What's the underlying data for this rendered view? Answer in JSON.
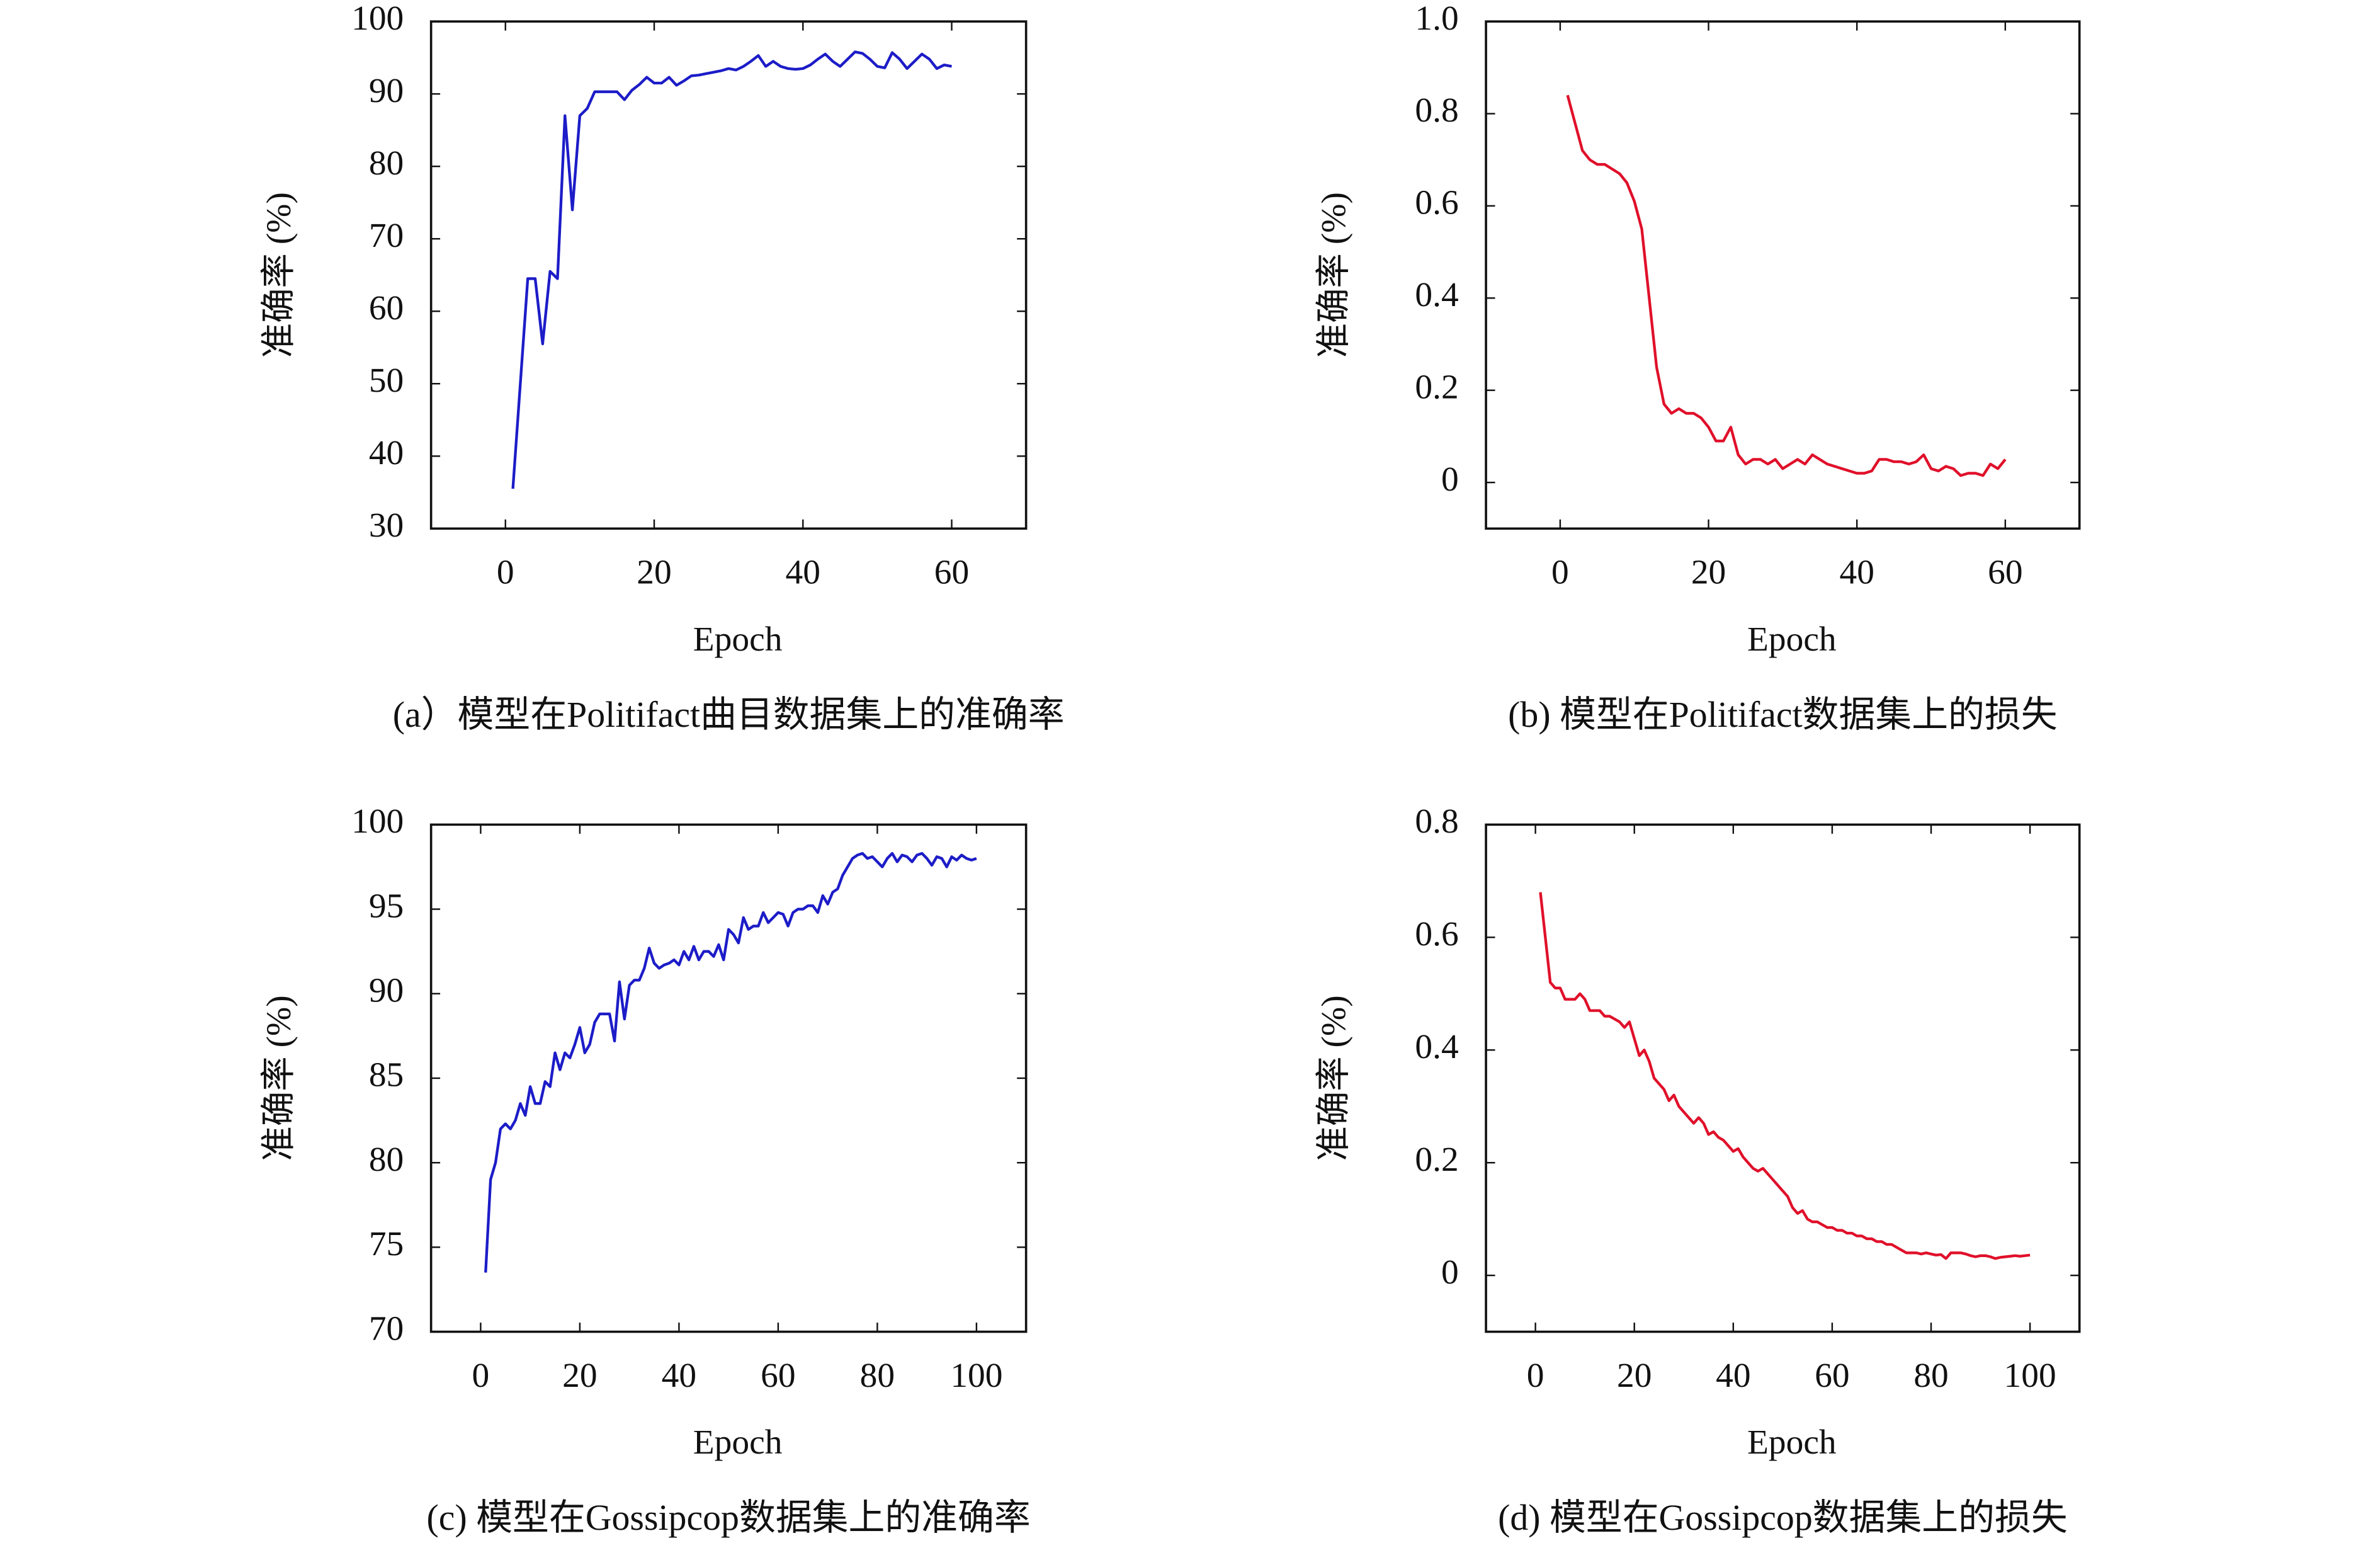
{
  "chart_data": [
    {
      "type": "line",
      "caption": "(a）模型在Politifact曲目数据集上的准确率",
      "xlabel": "Epoch",
      "ylabel": "准确率 (%)",
      "color": "#1c1cc8",
      "xlim": [
        -10,
        70
      ],
      "ylim": [
        30,
        100
      ],
      "xticks": [
        0,
        20,
        40,
        60
      ],
      "yticks": [
        30,
        40,
        50,
        60,
        70,
        80,
        90,
        100
      ],
      "x": [
        1,
        2,
        3,
        4,
        5,
        6,
        7,
        8,
        9,
        10,
        11,
        12,
        13,
        14,
        15,
        16,
        17,
        18,
        19,
        20,
        21,
        22,
        23,
        24,
        25,
        26,
        27,
        28,
        29,
        30,
        31,
        32,
        33,
        34,
        35,
        36,
        37,
        38,
        39,
        40,
        41,
        42,
        43,
        44,
        45,
        46,
        47,
        48,
        49,
        50,
        51,
        52,
        53,
        54,
        55,
        56,
        57,
        58,
        59,
        60
      ],
      "values": [
        35.5,
        50,
        64.5,
        64.5,
        55.5,
        65.5,
        64.5,
        87,
        74,
        87,
        88,
        90.3,
        90.3,
        90.3,
        90.3,
        89.2,
        90.5,
        91.3,
        92.3,
        91.5,
        91.5,
        92.3,
        91.2,
        91.8,
        92.5,
        92.6,
        92.8,
        93,
        93.2,
        93.5,
        93.3,
        93.8,
        94.5,
        95.3,
        93.8,
        94.5,
        93.8,
        93.5,
        93.4,
        93.5,
        94,
        94.8,
        95.5,
        94.5,
        93.8,
        94.8,
        95.8,
        95.6,
        94.8,
        93.8,
        93.6,
        95.7,
        94.8,
        93.5,
        94.5,
        95.5,
        94.8,
        93.5,
        94,
        93.8
      ]
    },
    {
      "type": "line",
      "caption": "(b) 模型在Politifact数据集上的损失",
      "xlabel": "Epoch",
      "ylabel": "准确率 (%)",
      "color": "#e0102a",
      "xlim": [
        -10,
        70
      ],
      "ylim": [
        -0.1,
        1.0
      ],
      "xticks": [
        0,
        20,
        40,
        60
      ],
      "yticks": [
        0,
        0.2,
        0.4,
        0.6,
        0.8,
        {
          "value": 1,
          "label": "1.0"
        }
      ],
      "x": [
        1,
        2,
        3,
        4,
        5,
        6,
        7,
        8,
        9,
        10,
        11,
        12,
        13,
        14,
        15,
        16,
        17,
        18,
        19,
        20,
        21,
        22,
        23,
        24,
        25,
        26,
        27,
        28,
        29,
        30,
        31,
        32,
        33,
        34,
        35,
        36,
        37,
        38,
        39,
        40,
        41,
        42,
        43,
        44,
        45,
        46,
        47,
        48,
        49,
        50,
        51,
        52,
        53,
        54,
        55,
        56,
        57,
        58,
        59,
        60
      ],
      "values": [
        0.84,
        0.78,
        0.72,
        0.7,
        0.69,
        0.69,
        0.68,
        0.67,
        0.65,
        0.61,
        0.55,
        0.4,
        0.25,
        0.17,
        0.15,
        0.16,
        0.15,
        0.15,
        0.14,
        0.12,
        0.09,
        0.09,
        0.12,
        0.06,
        0.04,
        0.05,
        0.05,
        0.04,
        0.05,
        0.03,
        0.04,
        0.05,
        0.04,
        0.06,
        0.05,
        0.04,
        0.035,
        0.03,
        0.025,
        0.02,
        0.02,
        0.025,
        0.05,
        0.05,
        0.045,
        0.045,
        0.04,
        0.045,
        0.06,
        0.03,
        0.025,
        0.035,
        0.03,
        0.015,
        0.02,
        0.02,
        0.015,
        0.04,
        0.03,
        0.05
      ]
    },
    {
      "type": "line",
      "caption": "(c) 模型在Gossipcop数据集上的准确率",
      "xlabel": "Epoch",
      "ylabel": "准确率 (%)",
      "color": "#1c1cc8",
      "xlim": [
        -10,
        110
      ],
      "ylim": [
        70,
        100
      ],
      "xticks": [
        0,
        20,
        40,
        60,
        80,
        100
      ],
      "yticks": [
        70,
        75,
        80,
        85,
        90,
        95,
        100
      ],
      "x": [
        1,
        2,
        3,
        4,
        5,
        6,
        7,
        8,
        9,
        10,
        11,
        12,
        13,
        14,
        15,
        16,
        17,
        18,
        19,
        20,
        21,
        22,
        23,
        24,
        25,
        26,
        27,
        28,
        29,
        30,
        31,
        32,
        33,
        34,
        35,
        36,
        37,
        38,
        39,
        40,
        41,
        42,
        43,
        44,
        45,
        46,
        47,
        48,
        49,
        50,
        51,
        52,
        53,
        54,
        55,
        56,
        57,
        58,
        59,
        60,
        61,
        62,
        63,
        64,
        65,
        66,
        67,
        68,
        69,
        70,
        71,
        72,
        73,
        74,
        75,
        76,
        77,
        78,
        79,
        80,
        81,
        82,
        83,
        84,
        85,
        86,
        87,
        88,
        89,
        90,
        91,
        92,
        93,
        94,
        95,
        96,
        97,
        98,
        99,
        100
      ],
      "values": [
        73.5,
        79,
        80,
        82,
        82.3,
        82,
        82.5,
        83.5,
        82.8,
        84.5,
        83.5,
        83.5,
        84.8,
        84.5,
        86.5,
        85.5,
        86.5,
        86.2,
        87,
        88,
        86.5,
        87,
        88.3,
        88.8,
        88.8,
        88.8,
        87.2,
        90.7,
        88.5,
        90.5,
        90.8,
        90.8,
        91.5,
        92.7,
        91.8,
        91.5,
        91.7,
        91.8,
        92,
        91.7,
        92.5,
        92,
        92.8,
        92,
        92.5,
        92.5,
        92.2,
        92.9,
        92,
        93.8,
        93.5,
        93,
        94.5,
        93.8,
        94,
        94,
        94.8,
        94.2,
        94.5,
        94.8,
        94.7,
        94,
        94.8,
        95,
        95,
        95.2,
        95.2,
        94.8,
        95.8,
        95.3,
        96,
        96.2,
        97,
        97.5,
        98,
        98.2,
        98.3,
        98,
        98.1,
        97.8,
        97.5,
        98,
        98.3,
        97.8,
        98.2,
        98.1,
        97.8,
        98.2,
        98.3,
        98,
        97.6,
        98.1,
        98,
        97.5,
        98.1,
        97.9,
        98.2,
        98,
        97.9,
        98
      ]
    },
    {
      "type": "line",
      "caption": "(d) 模型在Gossipcop数据集上的损失",
      "xlabel": "Epoch",
      "ylabel": "准确率 (%)",
      "color": "#e0102a",
      "xlim": [
        -10,
        110
      ],
      "ylim": [
        -0.1,
        0.8
      ],
      "xticks": [
        0,
        20,
        40,
        60,
        80,
        100
      ],
      "yticks": [
        0,
        0.2,
        0.4,
        0.6,
        0.8
      ],
      "x": [
        1,
        2,
        3,
        4,
        5,
        6,
        7,
        8,
        9,
        10,
        11,
        12,
        13,
        14,
        15,
        16,
        17,
        18,
        19,
        20,
        21,
        22,
        23,
        24,
        25,
        26,
        27,
        28,
        29,
        30,
        31,
        32,
        33,
        34,
        35,
        36,
        37,
        38,
        39,
        40,
        41,
        42,
        43,
        44,
        45,
        46,
        47,
        48,
        49,
        50,
        51,
        52,
        53,
        54,
        55,
        56,
        57,
        58,
        59,
        60,
        61,
        62,
        63,
        64,
        65,
        66,
        67,
        68,
        69,
        70,
        71,
        72,
        73,
        74,
        75,
        76,
        77,
        78,
        79,
        80,
        81,
        82,
        83,
        84,
        85,
        86,
        87,
        88,
        89,
        90,
        91,
        92,
        93,
        94,
        95,
        96,
        97,
        98,
        99,
        100
      ],
      "values": [
        0.68,
        0.6,
        0.52,
        0.51,
        0.51,
        0.49,
        0.49,
        0.49,
        0.5,
        0.49,
        0.47,
        0.47,
        0.47,
        0.46,
        0.46,
        0.455,
        0.45,
        0.44,
        0.45,
        0.42,
        0.39,
        0.4,
        0.38,
        0.35,
        0.34,
        0.33,
        0.31,
        0.32,
        0.3,
        0.29,
        0.28,
        0.27,
        0.28,
        0.27,
        0.25,
        0.255,
        0.245,
        0.24,
        0.23,
        0.22,
        0.225,
        0.21,
        0.2,
        0.19,
        0.185,
        0.19,
        0.18,
        0.17,
        0.16,
        0.15,
        0.14,
        0.12,
        0.11,
        0.115,
        0.1,
        0.095,
        0.095,
        0.09,
        0.085,
        0.085,
        0.08,
        0.08,
        0.075,
        0.075,
        0.07,
        0.07,
        0.065,
        0.065,
        0.06,
        0.06,
        0.055,
        0.055,
        0.05,
        0.045,
        0.04,
        0.04,
        0.04,
        0.038,
        0.04,
        0.038,
        0.036,
        0.037,
        0.03,
        0.04,
        0.04,
        0.04,
        0.038,
        0.035,
        0.033,
        0.035,
        0.035,
        0.033,
        0.03,
        0.032,
        0.033,
        0.034,
        0.035,
        0.034,
        0.035,
        0.036
      ]
    }
  ]
}
